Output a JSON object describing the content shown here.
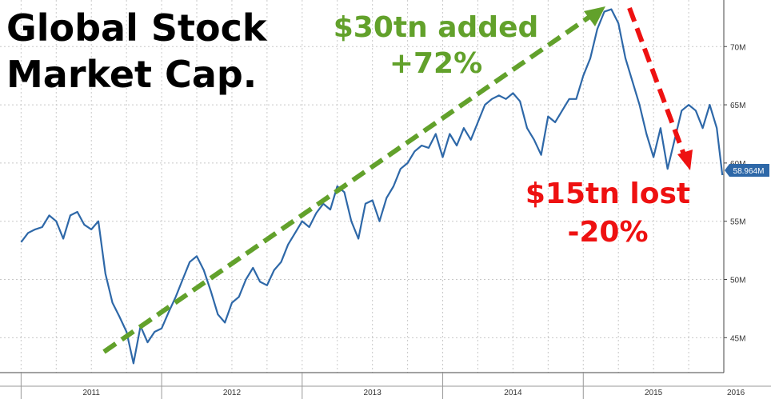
{
  "chart_data": {
    "type": "line",
    "title_lines": [
      "Global Stock",
      "Market Cap."
    ],
    "xlabel": "",
    "ylabel": "",
    "x_ticks": [
      "2011",
      "2012",
      "2013",
      "2014",
      "2015",
      "2016"
    ],
    "y_ticks": [
      "45M",
      "50M",
      "55M",
      "60M",
      "65M",
      "70M"
    ],
    "ylim": [
      42,
      74
    ],
    "grid": true,
    "last_value_label": "58.964M",
    "series": [
      {
        "color": "#2e68a8",
        "x": [
          2011.0,
          2011.05,
          2011.1,
          2011.15,
          2011.2,
          2011.25,
          2011.3,
          2011.35,
          2011.4,
          2011.45,
          2011.5,
          2011.55,
          2011.6,
          2011.65,
          2011.7,
          2011.75,
          2011.8,
          2011.85,
          2011.9,
          2011.95,
          2012.0,
          2012.05,
          2012.1,
          2012.15,
          2012.2,
          2012.25,
          2012.3,
          2012.35,
          2012.4,
          2012.45,
          2012.5,
          2012.55,
          2012.6,
          2012.65,
          2012.7,
          2012.75,
          2012.8,
          2012.85,
          2012.9,
          2012.95,
          2013.0,
          2013.05,
          2013.1,
          2013.15,
          2013.2,
          2013.25,
          2013.3,
          2013.35,
          2013.4,
          2013.45,
          2013.5,
          2013.55,
          2013.6,
          2013.65,
          2013.7,
          2013.75,
          2013.8,
          2013.85,
          2013.9,
          2013.95,
          2014.0,
          2014.05,
          2014.1,
          2014.15,
          2014.2,
          2014.25,
          2014.3,
          2014.35,
          2014.4,
          2014.45,
          2014.5,
          2014.55,
          2014.6,
          2014.65,
          2014.7,
          2014.75,
          2014.8,
          2014.85,
          2014.9,
          2014.95,
          2015.0,
          2015.05,
          2015.1,
          2015.15,
          2015.2,
          2015.25,
          2015.3,
          2015.35,
          2015.4,
          2015.45,
          2015.5,
          2015.55,
          2015.6,
          2015.65,
          2015.7,
          2015.75,
          2015.8,
          2015.85,
          2015.9,
          2015.95,
          2015.99
        ],
        "y": [
          53.2,
          54.0,
          54.3,
          54.5,
          55.5,
          55.0,
          53.5,
          55.5,
          55.8,
          54.7,
          54.3,
          55.0,
          50.5,
          48.0,
          46.8,
          45.5,
          42.8,
          46.0,
          44.6,
          45.5,
          45.8,
          47.2,
          48.5,
          50.0,
          51.5,
          52.0,
          50.8,
          49.0,
          47.0,
          46.3,
          48.0,
          48.5,
          50.0,
          51.0,
          49.8,
          49.5,
          50.8,
          51.5,
          53.0,
          54.0,
          55.0,
          54.5,
          55.7,
          56.5,
          56.0,
          58.0,
          57.5,
          55.0,
          53.5,
          56.5,
          56.8,
          55.0,
          57.0,
          58.0,
          59.5,
          60.0,
          61.0,
          61.5,
          61.3,
          62.5,
          60.5,
          62.5,
          61.5,
          63.0,
          62.0,
          63.5,
          65.0,
          65.5,
          65.8,
          65.5,
          66.0,
          65.3,
          63.0,
          62.0,
          60.7,
          64.0,
          63.5,
          64.5,
          65.5,
          65.5,
          67.5,
          69.0,
          71.5,
          73.0,
          73.2,
          72.0,
          69.0,
          67.0,
          65.0,
          62.5,
          60.5,
          63.0,
          59.5,
          62.0,
          64.5,
          65.0,
          64.5,
          63.0,
          65.0,
          63.0,
          58.96
        ]
      }
    ],
    "annotations": [
      {
        "lines": [
          "$30tn added",
          "+72%"
        ],
        "color": "#62a12b"
      },
      {
        "lines": [
          "$15tn lost",
          "-20%"
        ],
        "color": "#ee1111"
      }
    ]
  }
}
